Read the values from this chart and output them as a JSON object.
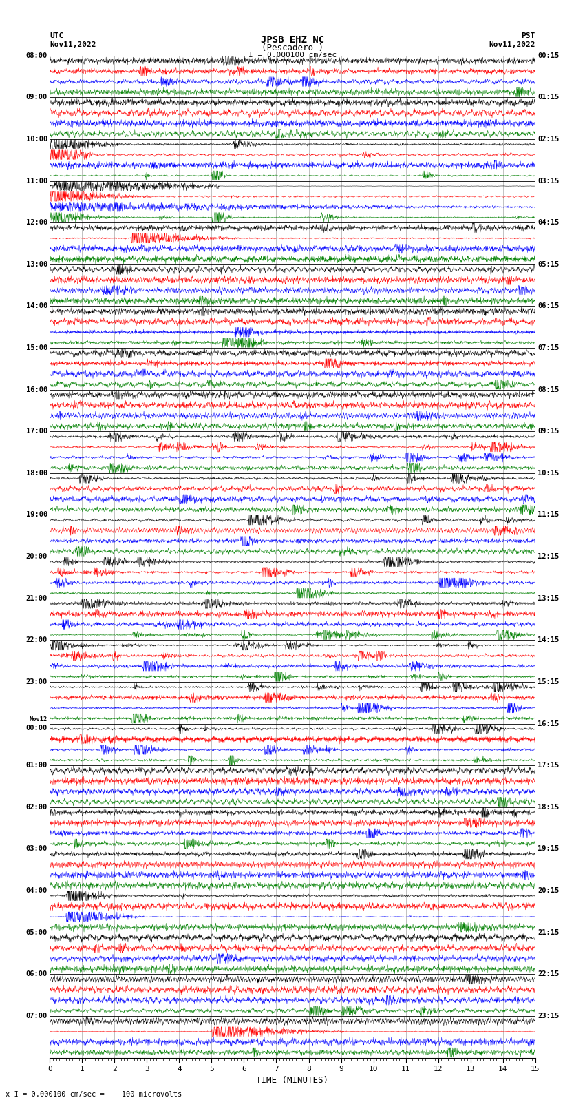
{
  "title_line1": "JPSB EHZ NC",
  "title_line2": "(Pescadero )",
  "title_scale": "I = 0.000100 cm/sec",
  "left_header_line1": "UTC",
  "left_header_line2": "Nov11,2022",
  "right_header_line1": "PST",
  "right_header_line2": "Nov11,2022",
  "bottom_label": "TIME (MINUTES)",
  "bottom_note": "x I = 0.000100 cm/sec =    100 microvolts",
  "xlabel_ticks": [
    0,
    1,
    2,
    3,
    4,
    5,
    6,
    7,
    8,
    9,
    10,
    11,
    12,
    13,
    14,
    15
  ],
  "utc_times": [
    "08:00",
    "09:00",
    "10:00",
    "11:00",
    "12:00",
    "13:00",
    "14:00",
    "15:00",
    "16:00",
    "17:00",
    "18:00",
    "19:00",
    "20:00",
    "21:00",
    "22:00",
    "23:00",
    "Nov12\n00:00",
    "01:00",
    "02:00",
    "03:00",
    "04:00",
    "05:00",
    "06:00",
    "07:00"
  ],
  "pst_times": [
    "00:15",
    "01:15",
    "02:15",
    "03:15",
    "04:15",
    "05:15",
    "06:15",
    "07:15",
    "08:15",
    "09:15",
    "10:15",
    "11:15",
    "12:15",
    "13:15",
    "14:15",
    "15:15",
    "16:15",
    "17:15",
    "18:15",
    "19:15",
    "20:15",
    "21:15",
    "22:15",
    "23:15"
  ],
  "n_rows": 24,
  "n_traces_per_row": 4,
  "colors": [
    "black",
    "red",
    "blue",
    "green"
  ],
  "bg_color": "white",
  "grid_color": "#aaaaaa",
  "figsize": [
    8.5,
    16.13
  ],
  "dpi": 100,
  "seed": 42
}
